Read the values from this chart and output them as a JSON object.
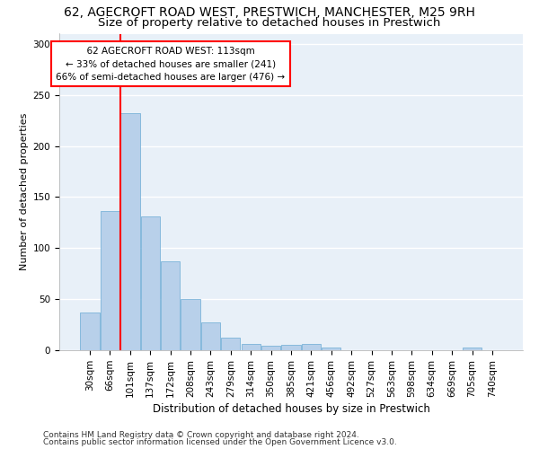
{
  "title1": "62, AGECROFT ROAD WEST, PRESTWICH, MANCHESTER, M25 9RH",
  "title2": "Size of property relative to detached houses in Prestwich",
  "xlabel": "Distribution of detached houses by size in Prestwich",
  "ylabel": "Number of detached properties",
  "footer1": "Contains HM Land Registry data © Crown copyright and database right 2024.",
  "footer2": "Contains public sector information licensed under the Open Government Licence v3.0.",
  "annotation_line1": "  62 AGECROFT ROAD WEST: 113sqm  ",
  "annotation_line2": "← 33% of detached houses are smaller (241)",
  "annotation_line3": "66% of semi-detached houses are larger (476) →",
  "bar_labels": [
    "30sqm",
    "66sqm",
    "101sqm",
    "137sqm",
    "172sqm",
    "208sqm",
    "243sqm",
    "279sqm",
    "314sqm",
    "350sqm",
    "385sqm",
    "421sqm",
    "456sqm",
    "492sqm",
    "527sqm",
    "563sqm",
    "598sqm",
    "634sqm",
    "669sqm",
    "705sqm",
    "740sqm"
  ],
  "bar_values": [
    37,
    136,
    232,
    131,
    87,
    50,
    27,
    12,
    6,
    4,
    5,
    6,
    3,
    0,
    0,
    0,
    0,
    0,
    0,
    3,
    0
  ],
  "bar_color": "#b8d0ea",
  "bar_edge_color": "#6aaad4",
  "bg_color": "#e8f0f8",
  "grid_color": "#ffffff",
  "vline_color": "red",
  "ylim": [
    0,
    310
  ],
  "yticks": [
    0,
    50,
    100,
    150,
    200,
    250,
    300
  ],
  "annotation_box_color": "white",
  "annotation_box_edge": "red",
  "title1_fontsize": 10,
  "title2_fontsize": 9.5,
  "xlabel_fontsize": 8.5,
  "ylabel_fontsize": 8,
  "footer_fontsize": 6.5,
  "annotation_fontsize": 7.5,
  "tick_fontsize": 7.5,
  "vline_bar_index": 2
}
